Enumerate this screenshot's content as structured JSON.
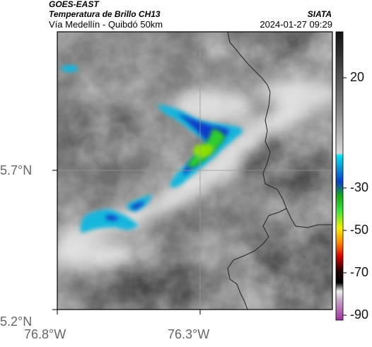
{
  "header": {
    "satellite": "GOES-EAST",
    "product": "Temperatura de Brillo CH13",
    "org": "SIATA",
    "route": "Vía Medellín - Quibdó 50km",
    "datetime": "2024-01-27 09:29"
  },
  "axes": {
    "lon_ticks": [
      "76.8°W",
      "76.3°W"
    ],
    "lat_ticks": [
      "5.7°N",
      "5.2°N"
    ]
  },
  "colorbar": {
    "ticks": [
      "20",
      "-30",
      "-50",
      "-70",
      "-90"
    ],
    "colors": {
      "warm_gray": "#d6d6d6",
      "cyan": "#00bcd4",
      "blue": "#0a3cc8",
      "green": "#2ecc2e",
      "yellow": "#f2f200",
      "orange": "#ff8a00",
      "red": "#d40000",
      "black": "#000000",
      "magenta": "#b040b0"
    }
  },
  "map": {
    "boundary_color": "#222222",
    "grid_color": "#999999"
  }
}
